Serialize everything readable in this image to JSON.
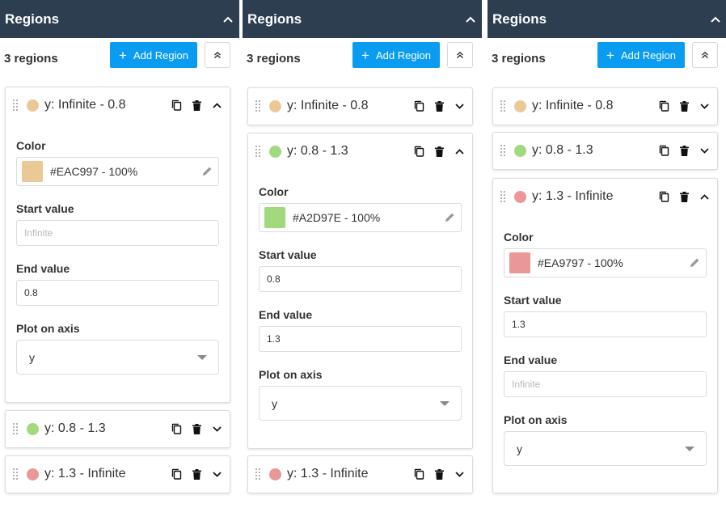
{
  "panels": [
    {
      "title": "Regions",
      "count": "3 regions",
      "add_label": "Add Region",
      "regions": [
        {
          "label": "y: Infinite - 0.8",
          "color": "#EAC997",
          "expanded": true,
          "color_text": "#EAC997 - 100%",
          "start": "",
          "start_placeholder": "Infinite",
          "end": "0.8",
          "end_placeholder": "",
          "axis": "y"
        },
        {
          "label": "y: 0.8 - 1.3",
          "color": "#A2D97E",
          "expanded": false
        },
        {
          "label": "y: 1.3 - Infinite",
          "color": "#EA9797",
          "expanded": false
        }
      ]
    },
    {
      "title": "Regions",
      "count": "3 regions",
      "add_label": "Add Region",
      "regions": [
        {
          "label": "y: Infinite - 0.8",
          "color": "#EAC997",
          "expanded": false
        },
        {
          "label": "y: 0.8 - 1.3",
          "color": "#A2D97E",
          "expanded": true,
          "color_text": "#A2D97E - 100%",
          "start": "0.8",
          "start_placeholder": "",
          "end": "1.3",
          "end_placeholder": "",
          "axis": "y"
        },
        {
          "label": "y: 1.3 - Infinite",
          "color": "#EA9797",
          "expanded": false
        }
      ]
    },
    {
      "title": "Regions",
      "count": "3 regions",
      "add_label": "Add Region",
      "regions": [
        {
          "label": "y: Infinite - 0.8",
          "color": "#EAC997",
          "expanded": false
        },
        {
          "label": "y: 0.8 - 1.3",
          "color": "#A2D97E",
          "expanded": false
        },
        {
          "label": "y: 1.3 - Infinite",
          "color": "#EA9797",
          "expanded": true,
          "color_text": "#EA9797 - 100%",
          "start": "1.3",
          "start_placeholder": "",
          "end": "",
          "end_placeholder": "Infinite",
          "axis": "y"
        }
      ]
    }
  ],
  "labels": {
    "color": "Color",
    "start_value": "Start value",
    "end_value": "End value",
    "plot_on_axis": "Plot on axis"
  },
  "theme": {
    "header_bg": "#2C3E50",
    "accent": "#0A9CF0"
  }
}
